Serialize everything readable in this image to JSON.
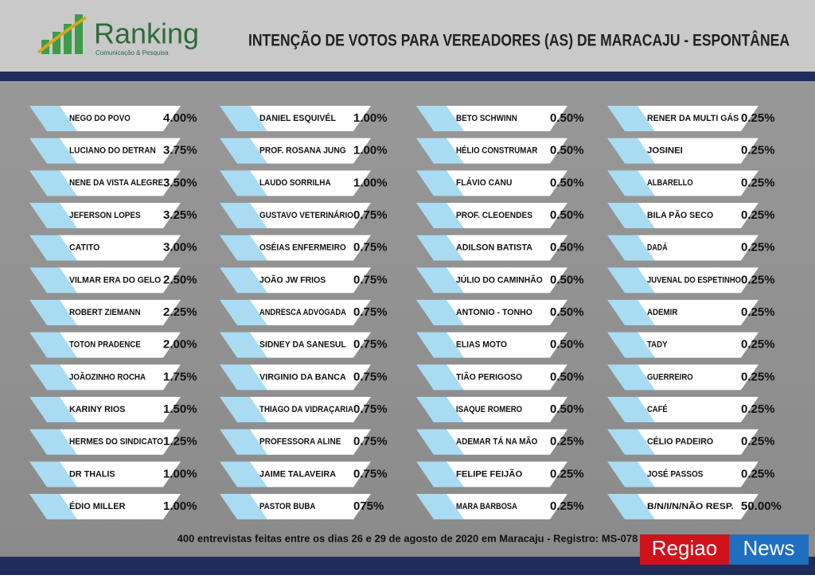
{
  "header": {
    "logo": "Ranking",
    "logo_sub": "Comunicação & Pesquisa",
    "title": "INTENÇÃO DE VOTOS PARA VEREADORES (AS) DE MARACAJU - ESPONTÂNEA"
  },
  "columns": [
    [
      {
        "name": "NEGO DO POVO",
        "value": "4.00%"
      },
      {
        "name": "LUCIANO DO DETRAN",
        "value": "3.75%"
      },
      {
        "name": "NENE DA VISTA ALEGRE",
        "value": "3.50%"
      },
      {
        "name": "JEFERSON LOPES",
        "value": "3.25%"
      },
      {
        "name": "CATITO",
        "value": "3.00%"
      },
      {
        "name": "VILMAR ERA DO GELO",
        "value": "2.50%"
      },
      {
        "name": "ROBERT ZIEMANN",
        "value": "2.25%"
      },
      {
        "name": "TOTON PRADENCE",
        "value": "2.00%"
      },
      {
        "name": "JOÃOZINHO ROCHA",
        "value": "1.75%"
      },
      {
        "name": "KARINY RIOS",
        "value": "1.50%"
      },
      {
        "name": "HERMES DO SINDICATO",
        "value": "1.25%"
      },
      {
        "name": "DR THALIS",
        "value": "1.00%"
      },
      {
        "name": "ÉDIO MILLER",
        "value": "1.00%"
      }
    ],
    [
      {
        "name": "DANIEL ESQUIVÉL",
        "value": "1.00%"
      },
      {
        "name": "PROF. ROSANA JUNG",
        "value": "1.00%"
      },
      {
        "name": "LAUDO SORRILHA",
        "value": "1.00%"
      },
      {
        "name": "GUSTAVO VETERINÁRIO",
        "value": "0.75%"
      },
      {
        "name": "OSÉIAS ENFERMEIRO",
        "value": "0.75%"
      },
      {
        "name": "JOÃO JW FRIOS",
        "value": "0.75%"
      },
      {
        "name": "ANDRESCA ADVOGADA",
        "value": "0.75%"
      },
      {
        "name": "SIDNEY DA SANESUL",
        "value": "0.75%"
      },
      {
        "name": "VIRGINIO DA BANCA",
        "value": "0.75%"
      },
      {
        "name": "THIAGO DA VIDRAÇARIA",
        "value": "0.75%"
      },
      {
        "name": "PROFESSORA ALINE",
        "value": "0.75%"
      },
      {
        "name": "JAIME TALAVEIRA",
        "value": "0.75%"
      },
      {
        "name": "PASTOR BUBA",
        "value": "075%"
      }
    ],
    [
      {
        "name": "BETO SCHWINN",
        "value": "0.50%"
      },
      {
        "name": "HÉLIO CONSTRUMAR",
        "value": "0.50%"
      },
      {
        "name": "FLÁVIO CANU",
        "value": "0.50%"
      },
      {
        "name": "PROF. CLEOENDES",
        "value": "0.50%"
      },
      {
        "name": "ADILSON BATISTA",
        "value": "0.50%"
      },
      {
        "name": "JÚLIO DO CAMINHÃO",
        "value": "0.50%"
      },
      {
        "name": "ANTONIO - TONHO",
        "value": "0.50%"
      },
      {
        "name": "ELIAS MOTO",
        "value": "0.50%"
      },
      {
        "name": "TIÃO PERIGOSO",
        "value": "0.50%"
      },
      {
        "name": "ISAQUE ROMERO",
        "value": "0.50%"
      },
      {
        "name": "ADEMAR TÁ NA MÃO",
        "value": "0.25%"
      },
      {
        "name": "FELIPE FEIJÃO",
        "value": "0.25%"
      },
      {
        "name": "MARA BARBOSA",
        "value": "0.25%"
      }
    ],
    [
      {
        "name": "RENER DA MULTI GÁS",
        "value": "0.25%"
      },
      {
        "name": "JOSINEI",
        "value": "0.25%"
      },
      {
        "name": "ALBARELLO",
        "value": "0.25%"
      },
      {
        "name": "BILA PÃO SECO",
        "value": "0.25%"
      },
      {
        "name": "DADÁ",
        "value": "0.25%"
      },
      {
        "name": "JUVENAL DO ESPETINHO",
        "value": "0.25%"
      },
      {
        "name": "ADEMIR",
        "value": "0.25%"
      },
      {
        "name": "TADY",
        "value": "0.25%"
      },
      {
        "name": "GUERREIRO",
        "value": "0.25%"
      },
      {
        "name": "CAFÉ",
        "value": "0.25%"
      },
      {
        "name": "CÉLIO PADEIRO",
        "value": "0.25%"
      },
      {
        "name": "JOSÉ PASSOS",
        "value": "0.25%"
      },
      {
        "name": "B/N/I/N/NÃO RESP.",
        "value": "50.00%"
      }
    ]
  ],
  "footer": "400 entrevistas feitas entre os  dias 26 e 29 de agosto de 2020 em Maracaju - Registro:  MS-078",
  "watermark": {
    "part1": "Regiao",
    "part2": "News"
  }
}
